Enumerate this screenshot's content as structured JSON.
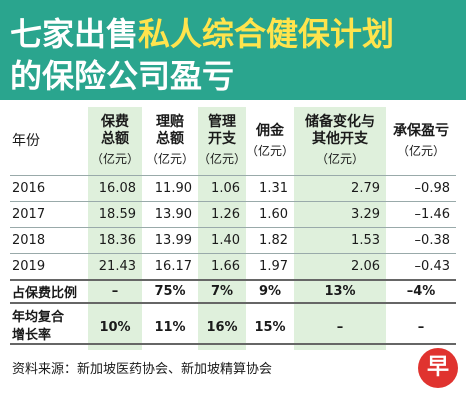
{
  "title": {
    "line1_plain": "七家出售",
    "line1_highlight": "私人综合健保计划",
    "line2": "的保险公司盈亏"
  },
  "colors": {
    "header_bg": "#2aa58e",
    "highlight": "#ffe44d",
    "shade": "#dff0dc",
    "logo": "#e0332f"
  },
  "table": {
    "headers": [
      {
        "line1": "年份",
        "line2": "",
        "unit": ""
      },
      {
        "line1": "保费",
        "line2": "总额",
        "unit": "（亿元）"
      },
      {
        "line1": "理赔",
        "line2": "总额",
        "unit": "（亿元）"
      },
      {
        "line1": "管理",
        "line2": "开支",
        "unit": "（亿元）"
      },
      {
        "line1": "佣金",
        "line2": "",
        "unit": "（亿元）"
      },
      {
        "line1": "储备变化与",
        "line2": "其他开支",
        "unit": "（亿元）"
      },
      {
        "line1": "承保盈亏",
        "line2": "",
        "unit": "（亿元）"
      }
    ],
    "rows": [
      {
        "year": "2016",
        "values": [
          "16.08",
          "11.90",
          "1.06",
          "1.31",
          "2.79",
          "–0.98"
        ]
      },
      {
        "year": "2017",
        "values": [
          "18.59",
          "13.90",
          "1.26",
          "1.60",
          "3.29",
          "–1.46"
        ]
      },
      {
        "year": "2018",
        "values": [
          "18.36",
          "13.99",
          "1.40",
          "1.82",
          "1.53",
          "–0.38"
        ]
      },
      {
        "year": "2019",
        "values": [
          "21.43",
          "16.17",
          "1.66",
          "1.97",
          "2.06",
          "–0.43"
        ]
      }
    ],
    "ratio": {
      "label": "占保费比例",
      "values": [
        "–",
        "75%",
        "7%",
        "9%",
        "13%",
        "–4%"
      ]
    },
    "growth": {
      "label_line1": "年均复合",
      "label_line2": "增长率",
      "values": [
        "10%",
        "11%",
        "16%",
        "15%",
        "–",
        "–"
      ]
    }
  },
  "source": "资料来源：新加坡医药协会、新加坡精算协会",
  "logo": {
    "glyph": "早",
    "icon": "zaobao-logo-icon"
  }
}
